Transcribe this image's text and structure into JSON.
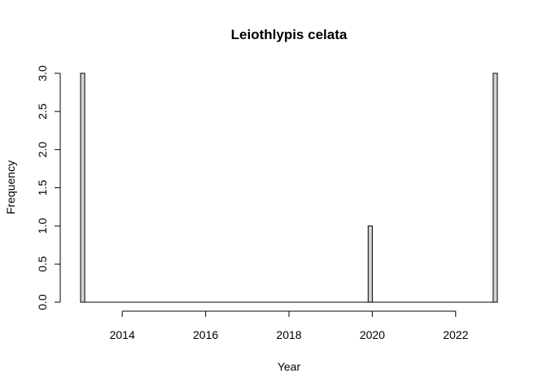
{
  "chart_data": {
    "type": "bar",
    "title": "Leiothlypis celata",
    "xlabel": "Year",
    "ylabel": "Frequency",
    "xlim": [
      2013.0,
      2023.0
    ],
    "ylim": [
      0,
      3
    ],
    "x_ticks": [
      2014,
      2016,
      2018,
      2020,
      2022
    ],
    "x_tick_labels": [
      "2014",
      "2016",
      "2018",
      "2020",
      "2022"
    ],
    "y_ticks": [
      0,
      0.5,
      1,
      1.5,
      2,
      2.5,
      3
    ],
    "y_tick_labels": [
      "0.0",
      "0.5",
      "1.0",
      "1.5",
      "2.0",
      "2.5",
      "3.0"
    ],
    "bar_fill": "#d3d3d3",
    "bar_stroke": "#000000",
    "grid": false,
    "legend": "none",
    "bins": [
      {
        "start": 2013.0,
        "end": 2013.1,
        "count": 3
      },
      {
        "start": 2019.9,
        "end": 2020.0,
        "count": 1
      },
      {
        "start": 2022.9,
        "end": 2023.0,
        "count": 3
      }
    ]
  }
}
